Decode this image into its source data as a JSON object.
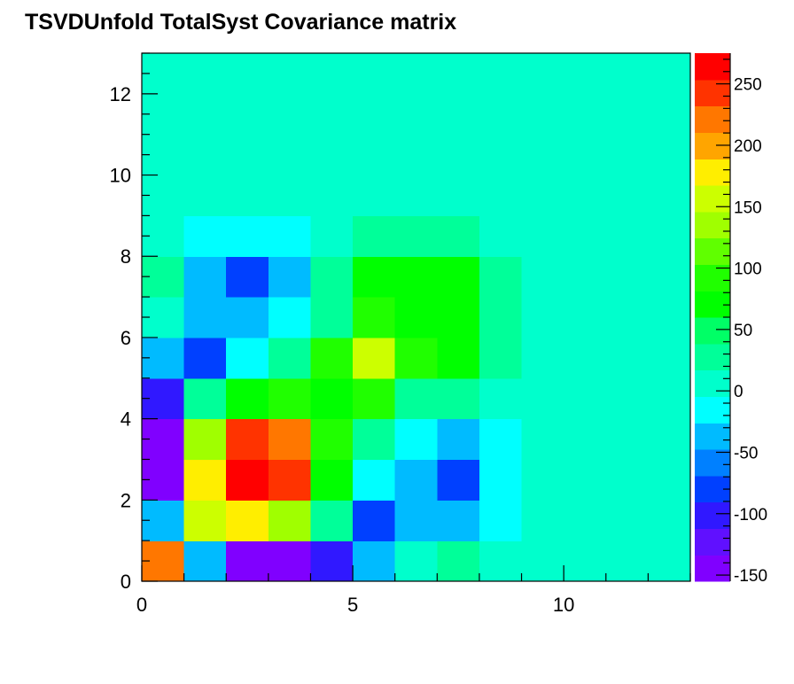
{
  "chart_data": {
    "type": "heatmap",
    "title": "TSVDUnfold TotalSyst Covariance matrix",
    "xlabel": "",
    "ylabel": "",
    "xlim": [
      0,
      13
    ],
    "ylim": [
      0,
      13
    ],
    "zlim": [
      -155,
      275
    ],
    "x_ticks": [
      0,
      5,
      10
    ],
    "y_ticks": [
      0,
      2,
      4,
      6,
      8,
      10,
      12
    ],
    "z_ticks": [
      -150,
      -100,
      -50,
      0,
      50,
      100,
      150,
      200,
      250
    ],
    "bin_width": 1,
    "cells_row_order": "rows from y=0 (bottom) upward, columns from x=0 leftward to x=12",
    "z": [
      [
        220,
        -40,
        -140,
        -140,
        -100,
        -40,
        10,
        35,
        10,
        10,
        10,
        10,
        10
      ],
      [
        -40,
        165,
        185,
        140,
        30,
        -70,
        -40,
        -40,
        -20,
        10,
        10,
        10,
        10
      ],
      [
        -140,
        185,
        270,
        250,
        70,
        -20,
        -40,
        -70,
        -20,
        10,
        10,
        10,
        10
      ],
      [
        -140,
        140,
        250,
        225,
        85,
        30,
        -20,
        -40,
        -20,
        10,
        10,
        10,
        10
      ],
      [
        -100,
        30,
        70,
        85,
        75,
        85,
        35,
        35,
        10,
        10,
        10,
        10,
        10
      ],
      [
        -40,
        -70,
        -20,
        30,
        85,
        165,
        85,
        70,
        35,
        10,
        10,
        10,
        10
      ],
      [
        10,
        -40,
        -40,
        -20,
        35,
        85,
        70,
        70,
        35,
        10,
        10,
        10,
        10
      ],
      [
        35,
        -40,
        -70,
        -40,
        35,
        70,
        70,
        70,
        35,
        10,
        10,
        10,
        10
      ],
      [
        10,
        -20,
        -20,
        -20,
        10,
        35,
        35,
        35,
        10,
        10,
        10,
        10,
        10
      ],
      [
        10,
        10,
        10,
        10,
        10,
        10,
        10,
        10,
        10,
        10,
        10,
        10,
        10
      ],
      [
        10,
        10,
        10,
        10,
        10,
        10,
        10,
        10,
        10,
        10,
        10,
        10,
        10
      ],
      [
        10,
        10,
        10,
        10,
        10,
        10,
        10,
        10,
        10,
        10,
        10,
        10,
        10
      ],
      [
        10,
        10,
        10,
        10,
        10,
        10,
        10,
        10,
        10,
        10,
        10,
        10,
        10
      ]
    ],
    "palette": [
      "#8000ff",
      "#6010ff",
      "#3018ff",
      "#0040ff",
      "#0080ff",
      "#00bbff",
      "#00ffff",
      "#00ffcc",
      "#00ff99",
      "#00ff66",
      "#00ff00",
      "#20ff00",
      "#60ff00",
      "#a0ff00",
      "#ccff00",
      "#ffee00",
      "#ffa500",
      "#ff7700",
      "#ff3300",
      "#ff0000"
    ],
    "grid": false,
    "legend": "color-bar-right"
  }
}
